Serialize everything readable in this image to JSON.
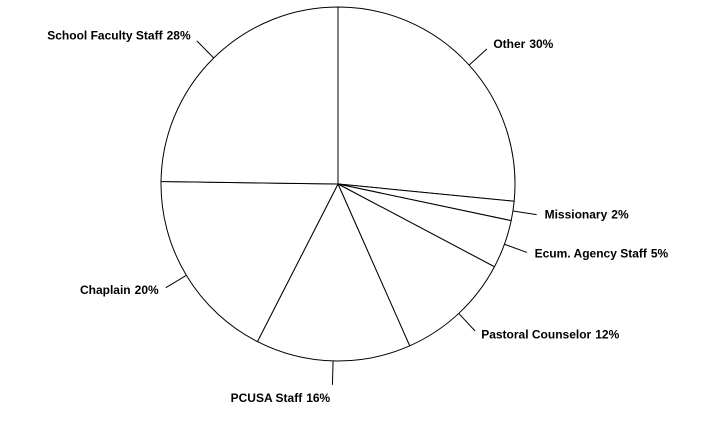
{
  "chart_data": {
    "type": "pie",
    "categories": [
      "Other",
      "Missionary",
      "Ecum. Agency Staff",
      "Pastoral Counselor",
      "PCUSA Staff",
      "Chaplain",
      "School Faculty Staff"
    ],
    "values": [
      30,
      2,
      5,
      12,
      16,
      20,
      28
    ],
    "value_labels": [
      "30%",
      "2%",
      "5%",
      "12%",
      "16%",
      "20%",
      "28%"
    ],
    "color": "#ffffff",
    "edge_color": "#000000"
  }
}
